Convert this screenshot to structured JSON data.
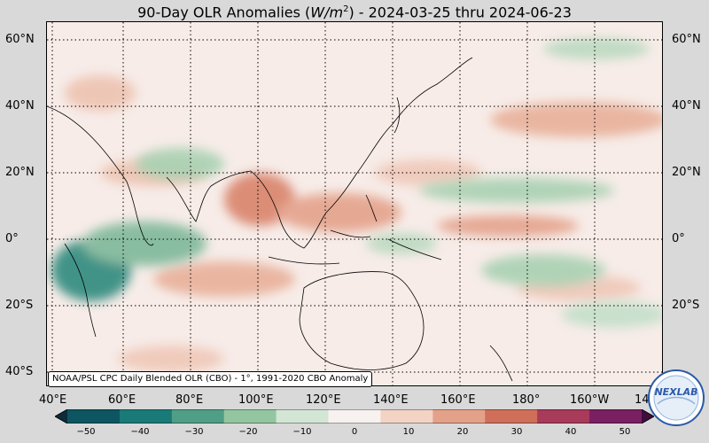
{
  "title": {
    "prefix": "90-Day OLR Anomalies (",
    "unit_base": "W/m",
    "unit_exp": "2",
    "suffix": ") - 2024-03-25 thru 2024-06-23"
  },
  "source_note": "NOAA/PSL CPC Daily Blended OLR (CBO) - 1°, 1991-2020 CBO Anomaly",
  "lat_labels": [
    "60°N",
    "40°N",
    "20°N",
    "0°",
    "20°S",
    "40°S"
  ],
  "lon_labels": [
    "40°E",
    "60°E",
    "80°E",
    "100°E",
    "120°E",
    "140°E",
    "160°E",
    "180°",
    "160°W",
    "14"
  ],
  "colorbar": {
    "ticks": [
      "−50",
      "−40",
      "−30",
      "−20",
      "−10",
      "0",
      "10",
      "20",
      "30",
      "40",
      "50"
    ],
    "colors": [
      "#0d2b3a",
      "#0d5560",
      "#1a7a78",
      "#4f9e86",
      "#93c6a0",
      "#d3e6d6",
      "#f7f2ef",
      "#f2d3c4",
      "#e4a18a",
      "#cf6f5a",
      "#a83a5a",
      "#7a1f62",
      "#3e0f3d"
    ]
  },
  "logo_text": "NEXLAB"
}
